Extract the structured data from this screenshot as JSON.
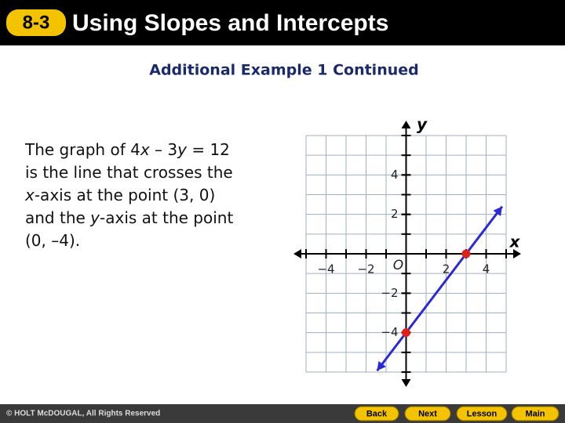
{
  "header": {
    "badge": "8-3",
    "title": "Using Slopes and Intercepts"
  },
  "subtitle": "Additional Example 1 Continued",
  "body": {
    "lines": [
      [
        "The graph of 4",
        "x",
        " – 3",
        "y",
        " = 12"
      ],
      [
        "is the line that crosses the"
      ],
      [
        "x",
        "-axis at the point (3, 0)"
      ],
      [
        "and the ",
        "y",
        "-axis at the point"
      ],
      [
        "(0, –4)."
      ]
    ]
  },
  "graph": {
    "xlim": [
      -5,
      5
    ],
    "ylim": [
      -6,
      6
    ],
    "xticks": [
      {
        "value": -4,
        "label": "−4"
      },
      {
        "value": -2,
        "label": "−2"
      },
      {
        "value": 2,
        "label": "2"
      },
      {
        "value": 4,
        "label": "4"
      }
    ],
    "yticks": [
      {
        "value": -4,
        "label": "−4"
      },
      {
        "value": -2,
        "label": "−2"
      },
      {
        "value": 2,
        "label": "2"
      },
      {
        "value": 4,
        "label": "4"
      }
    ],
    "xlabel": "x",
    "ylabel": "y",
    "origin_label": "O",
    "line": {
      "x": [
        -1.45,
        4.8
      ],
      "y": [
        -5.93,
        2.4
      ],
      "color": "#2b2bd6"
    },
    "points": {
      "x": [
        3,
        0
      ],
      "y": [
        0,
        -4
      ],
      "color": "#e0201a"
    }
  },
  "footer": {
    "copyright": "© HOLT McDOUGAL, All Rights Reserved",
    "nav": [
      "Back",
      "Next",
      "Lesson",
      "Main"
    ]
  }
}
